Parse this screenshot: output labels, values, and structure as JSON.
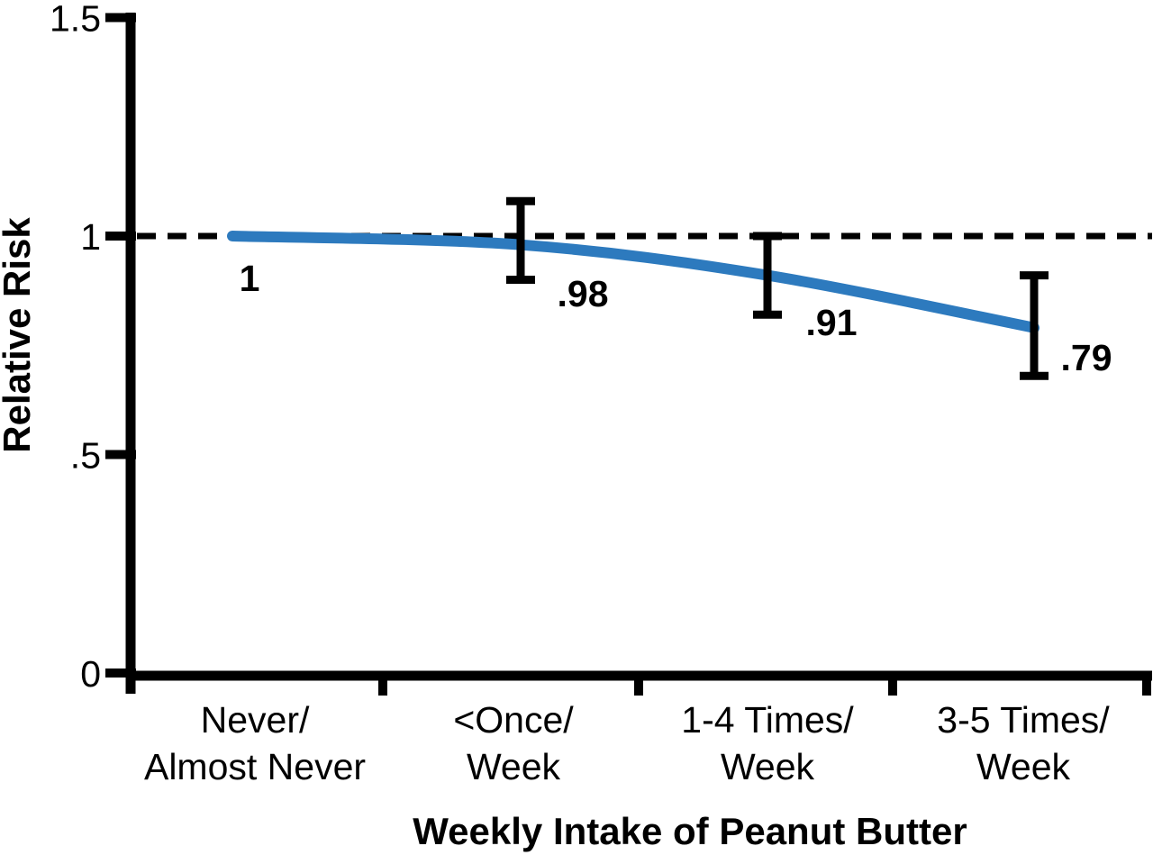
{
  "chart_data": {
    "type": "line",
    "title": "",
    "xlabel": "Weekly Intake of Peanut Butter",
    "ylabel": "Relative Risk",
    "categories": [
      "Never/Almost Never",
      "<Once/Week",
      "1-4 Times/Week",
      "3-5 Times/Week"
    ],
    "category_tick_lines": [
      [
        "Never/",
        "Almost Never"
      ],
      [
        "<Once/",
        "Week"
      ],
      [
        "1-4 Times/",
        "Week"
      ],
      [
        "3-5 Times/",
        "Week"
      ]
    ],
    "series": [
      {
        "name": "Relative Risk",
        "values": [
          1.0,
          0.98,
          0.91,
          0.79
        ]
      }
    ],
    "point_labels": [
      "1",
      ".98",
      ".91",
      ".79"
    ],
    "error_bars": [
      {
        "category_index": 1,
        "value": 0.98,
        "low": 0.9,
        "high": 1.08
      },
      {
        "category_index": 2,
        "value": 0.91,
        "low": 0.82,
        "high": 1.0
      },
      {
        "category_index": 3,
        "value": 0.79,
        "low": 0.68,
        "high": 0.91
      }
    ],
    "reference_line_y": 1.0,
    "reference_line_style": "dashed",
    "ylim": [
      0,
      1.5
    ],
    "yticks": [
      0,
      0.5,
      1,
      1.5
    ],
    "ytick_labels": [
      "0",
      ".5",
      "1",
      "1.5"
    ],
    "grid": false,
    "legend": "none",
    "line_style": "smooth",
    "line_color": "#2d7abe",
    "axis_color": "#000000"
  }
}
